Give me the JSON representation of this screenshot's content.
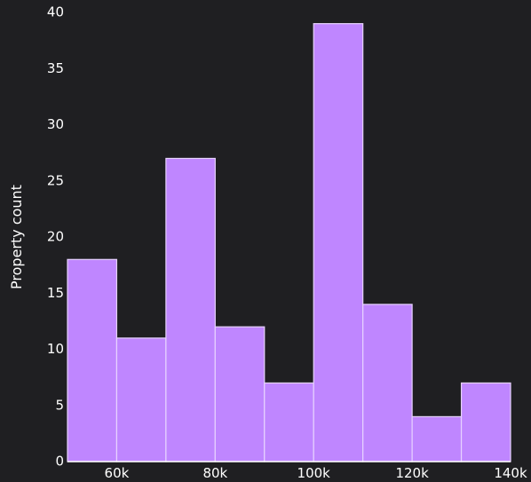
{
  "chart_data": {
    "type": "bar",
    "categories": [
      "50k-60k",
      "60k-70k",
      "70k-80k",
      "80k-90k",
      "90k-100k",
      "100k-110k",
      "110k-120k",
      "120k-130k",
      "130k-140k"
    ],
    "bins": [
      {
        "start": 50000,
        "end": 60000,
        "value": 18
      },
      {
        "start": 60000,
        "end": 70000,
        "value": 11
      },
      {
        "start": 70000,
        "end": 80000,
        "value": 27
      },
      {
        "start": 80000,
        "end": 90000,
        "value": 12
      },
      {
        "start": 90000,
        "end": 100000,
        "value": 7
      },
      {
        "start": 100000,
        "end": 110000,
        "value": 39
      },
      {
        "start": 110000,
        "end": 120000,
        "value": 14
      },
      {
        "start": 120000,
        "end": 130000,
        "value": 4
      },
      {
        "start": 130000,
        "end": 140000,
        "value": 7
      }
    ],
    "xlabel": "",
    "ylabel": "Property count",
    "xlim": [
      50000,
      140000
    ],
    "ylim": [
      0,
      40
    ],
    "x_ticks": [
      60000,
      80000,
      100000,
      120000,
      140000
    ],
    "x_tick_labels": [
      "60k",
      "80k",
      "100k",
      "120k",
      "140k"
    ],
    "y_ticks": [
      0,
      5,
      10,
      15,
      20,
      25,
      30,
      35,
      40
    ],
    "y_tick_labels": [
      "0",
      "5",
      "10",
      "15",
      "20",
      "25",
      "30",
      "35",
      "40"
    ],
    "grid": false,
    "colors": {
      "background": "#1f1f22",
      "bar_fill": "#bf86ff",
      "bar_edge": "#e7d2ff",
      "text": "#ffffff"
    }
  }
}
